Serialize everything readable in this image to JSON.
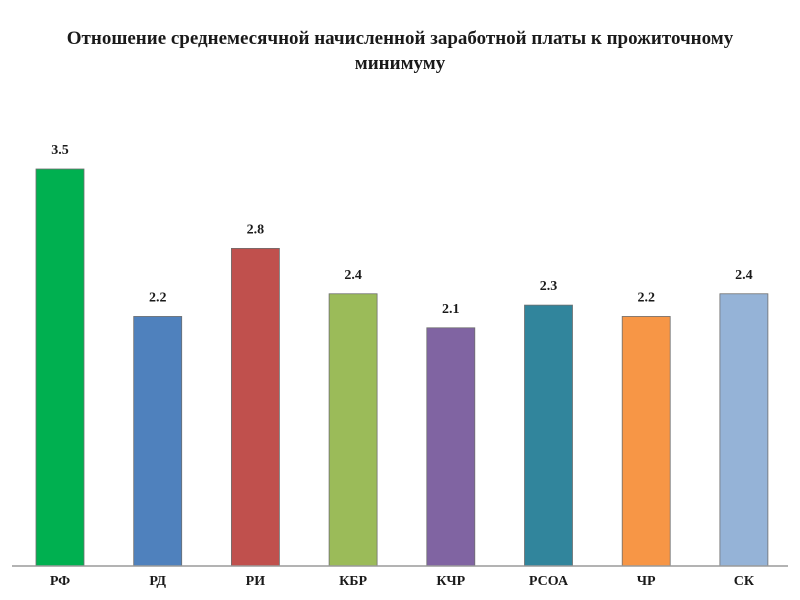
{
  "chart_data": {
    "type": "bar",
    "title": "Отношение среднемесячной начисленной заработной платы к прожиточному минимуму",
    "xlabel": "",
    "ylabel": "",
    "categories": [
      "РФ",
      "РД",
      "РИ",
      "КБР",
      "КЧР",
      "РСОА",
      "ЧР",
      "СК"
    ],
    "values": [
      3.5,
      2.2,
      2.8,
      2.4,
      2.1,
      2.3,
      2.2,
      2.4
    ],
    "value_labels": [
      "3.5",
      "2.2",
      "2.8",
      "2.4",
      "2.1",
      "2.3",
      "2.2",
      "2.4"
    ],
    "colors": [
      "#00b050",
      "#4f81bd",
      "#c0504d",
      "#9bbb59",
      "#8064a2",
      "#31859c",
      "#f79646",
      "#95b3d7"
    ],
    "ylim": [
      0,
      3.5
    ],
    "grid": false,
    "legend": "none"
  }
}
